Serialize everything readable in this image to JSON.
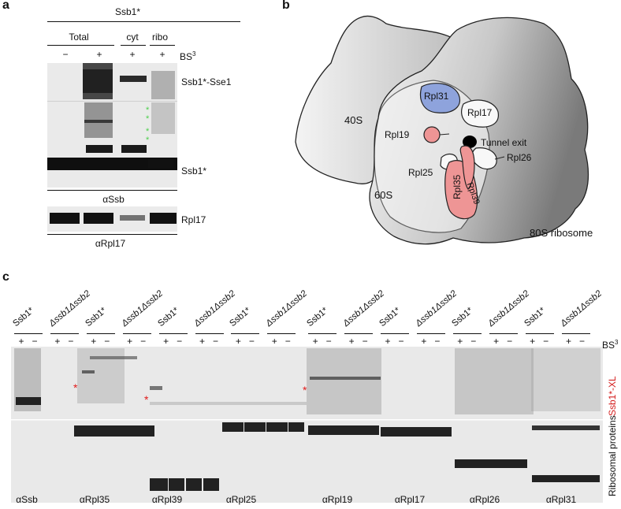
{
  "panels": {
    "a": "a",
    "b": "b",
    "c": "c"
  },
  "panel_a": {
    "strain": "Ssb1*",
    "groups": {
      "total": "Total",
      "cyt": "cyt",
      "ribo": "ribo"
    },
    "bs3_signs": [
      "−",
      "+",
      "+",
      "+"
    ],
    "bs3_label": "BS",
    "bs3_sup": "3",
    "bands": {
      "crosslink": "Ssb1*-Sse1",
      "ssb1": "Ssb1*",
      "rpl17": "Rpl17"
    },
    "stars": [
      "*",
      "*",
      "*",
      "*"
    ],
    "antibodies": {
      "ssb": "αSsb",
      "rpl17": "αRpl17"
    }
  },
  "panel_b": {
    "subunit_40s": "40S",
    "subunit_60s": "60S",
    "ribosome": "80S ribosome",
    "proteins": [
      "Rpl31",
      "Rpl17",
      "Rpl19",
      "Tunnel exit",
      "Rpl26",
      "Rpl25",
      "Rpl35",
      "Rpl39"
    ]
  },
  "panel_c": {
    "lane_groups": [
      {
        "label": "Ssb1*",
        "mutant": false
      },
      {
        "label": "Δssb1Δssb2",
        "mutant": true
      },
      {
        "label": "Ssb1*",
        "mutant": false
      },
      {
        "label": "Δssb1Δssb2",
        "mutant": true
      },
      {
        "label": "Ssb1*",
        "mutant": false
      },
      {
        "label": "Δssb1Δssb2",
        "mutant": true
      },
      {
        "label": "Ssb1*",
        "mutant": false
      },
      {
        "label": "Δssb1Δssb2",
        "mutant": true
      },
      {
        "label": "Ssb1*",
        "mutant": false
      },
      {
        "label": "Δssb1Δssb2",
        "mutant": true
      },
      {
        "label": "Ssb1*",
        "mutant": false
      },
      {
        "label": "Δssb1Δssb2",
        "mutant": true
      },
      {
        "label": "Ssb1*",
        "mutant": false
      },
      {
        "label": "Δssb1Δssb2",
        "mutant": true
      },
      {
        "label": "Ssb1*",
        "mutant": false
      },
      {
        "label": "Δssb1Δssb2",
        "mutant": true
      }
    ],
    "signs": [
      "+",
      "−"
    ],
    "bs3_label": "BS",
    "bs3_sup": "3",
    "side_top": "Ssb1*-XL",
    "side_bottom": "Ribosomal proteins",
    "stars": [
      "*",
      "*",
      "*"
    ],
    "antibodies": [
      "αSsb",
      "αRpl35",
      "αRpl39",
      "αRpl25",
      "αRpl19",
      "αRpl17",
      "αRpl26",
      "αRpl31"
    ]
  },
  "colors": {
    "rpl31": "#8ea3dc",
    "rpl19_35": "#ee9595",
    "star_green": "#4ccf4c",
    "star_red": "#e01a1a",
    "xl_label": "#d42020"
  }
}
